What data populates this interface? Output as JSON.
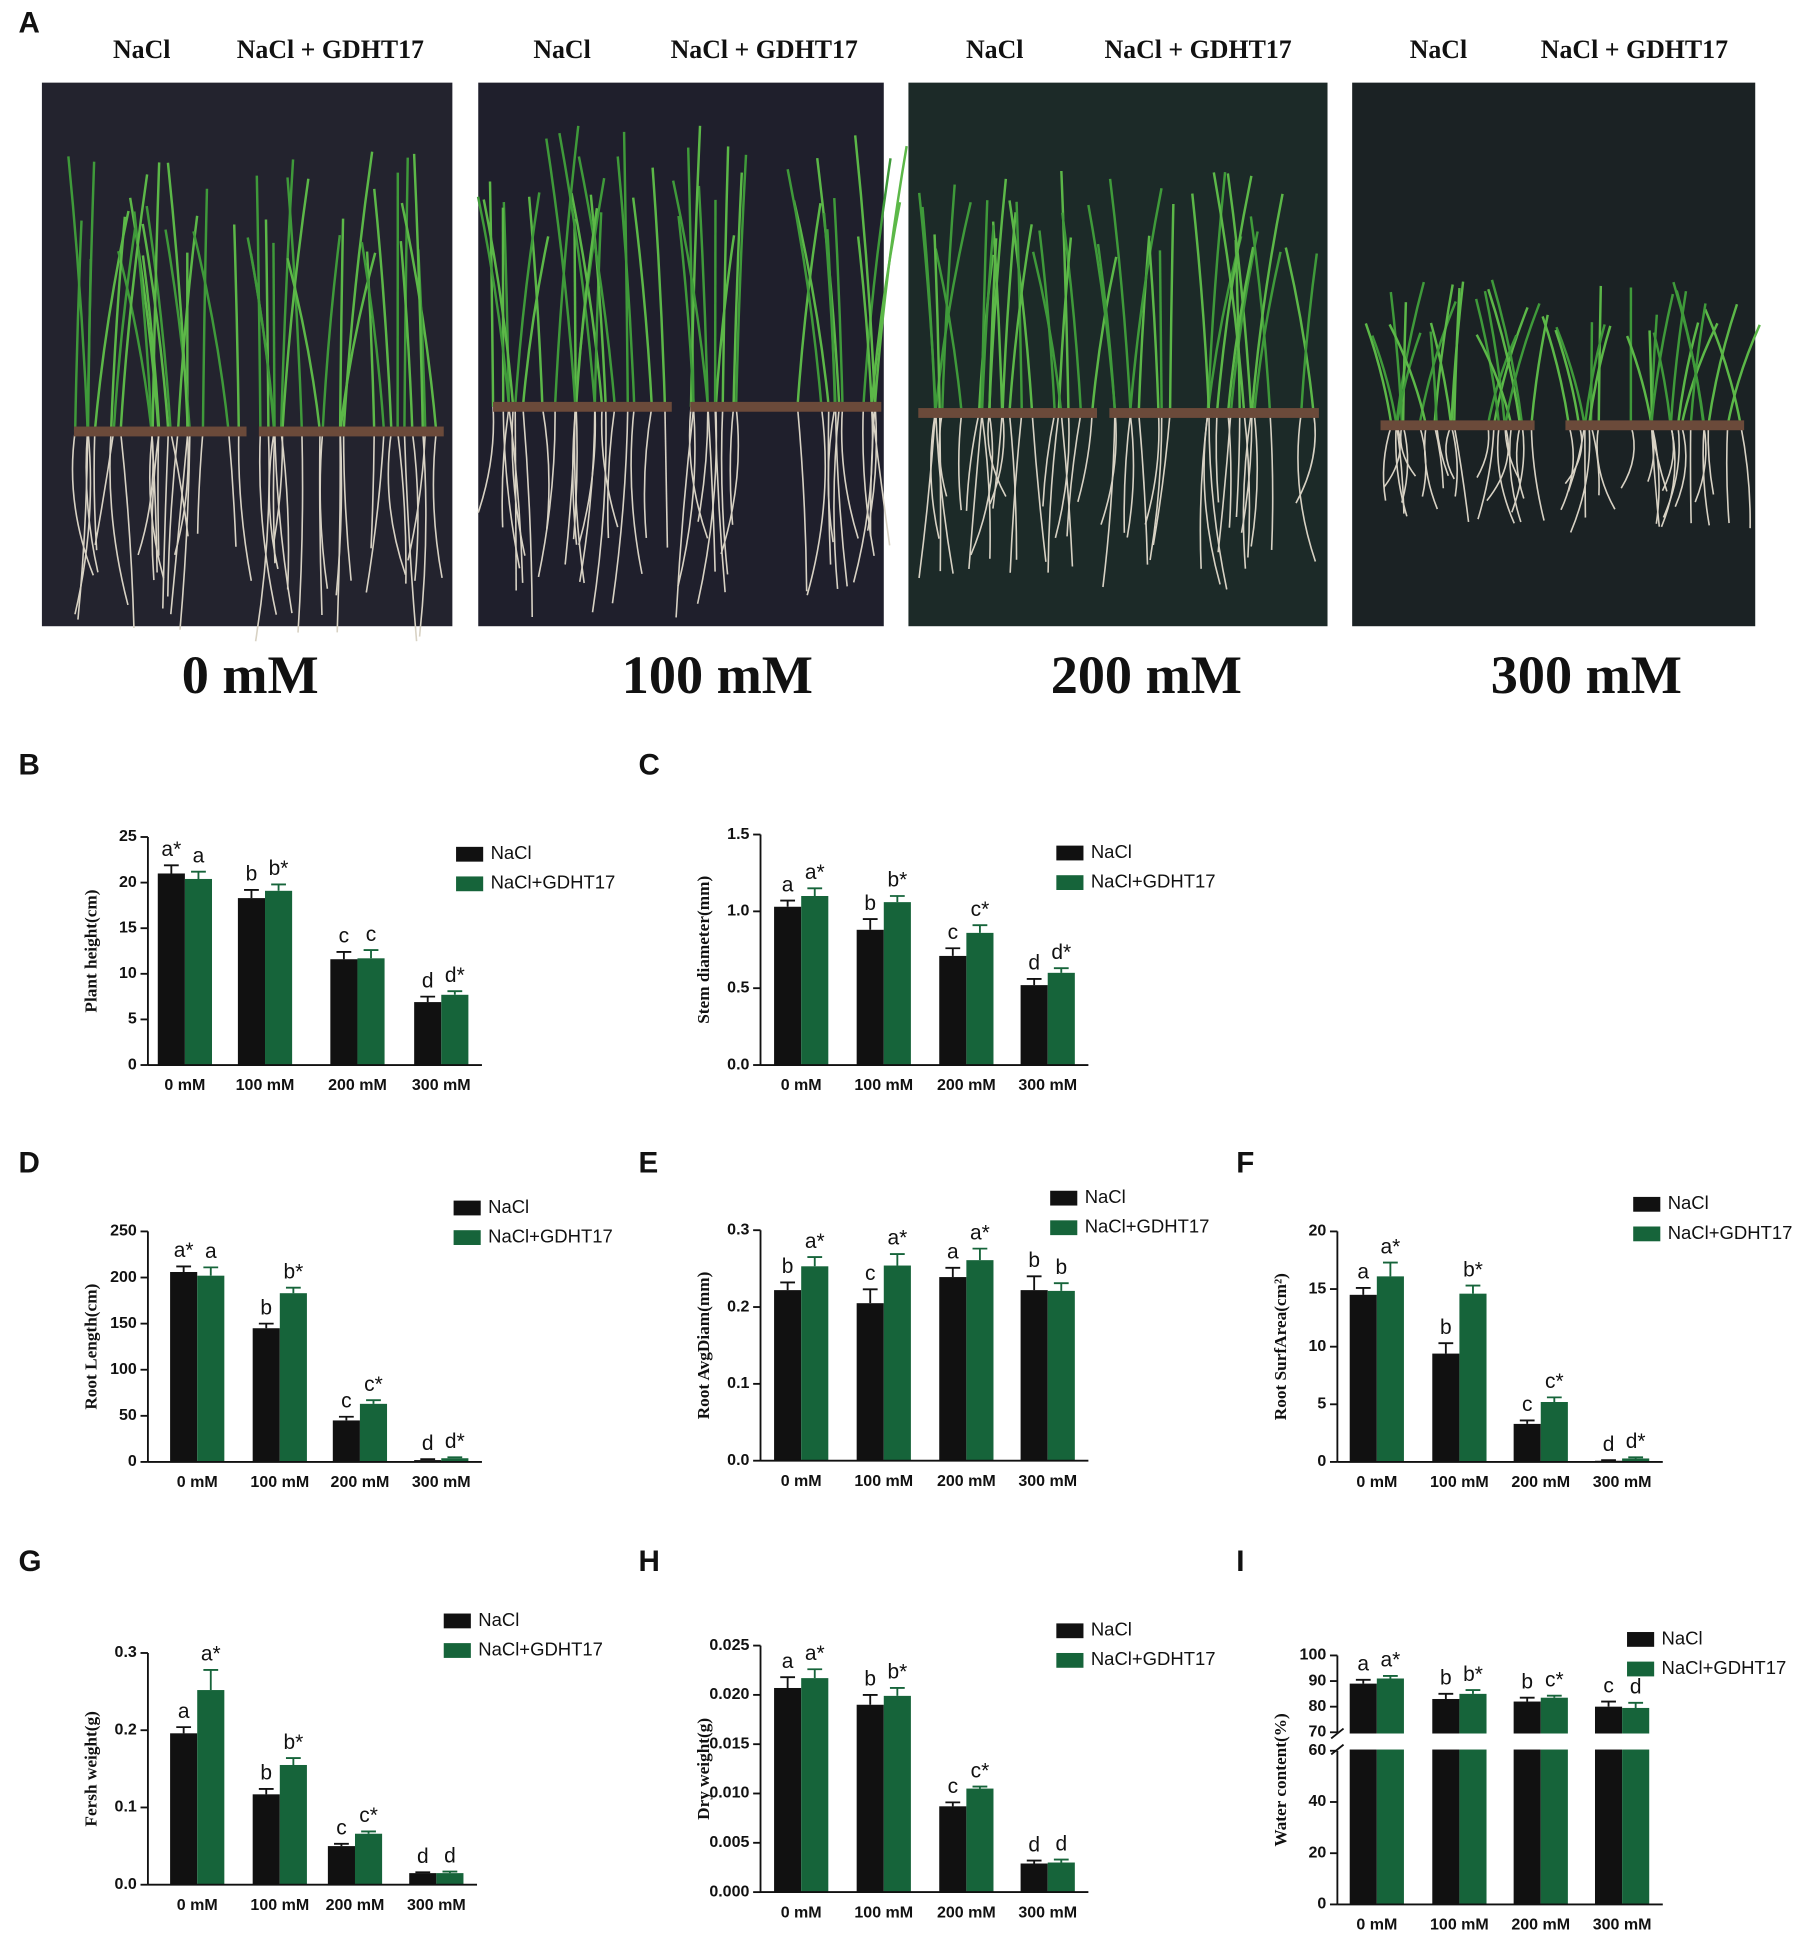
{
  "panel_a": {
    "label": "A",
    "photos": [
      {
        "labels": [
          "NaCl",
          "NaCl + GDHT17"
        ],
        "concentration": "0 mM"
      },
      {
        "labels": [
          "NaCl",
          "NaCl + GDHT17"
        ],
        "concentration": "100 mM"
      },
      {
        "labels": [
          "NaCl",
          "NaCl + GDHT17"
        ],
        "concentration": "200 mM"
      },
      {
        "labels": [
          "NaCl",
          "NaCl + GDHT17"
        ],
        "concentration": "300 mM"
      }
    ]
  },
  "chart_data": [
    {
      "type": "bar",
      "panel": "B",
      "y_label": "Plant height(cm)",
      "categories": [
        "0 mM",
        "100 mM",
        "200 mM",
        "300 mM"
      ],
      "ylim": [
        0,
        25
      ],
      "yticks": [
        0,
        5,
        10,
        15,
        20,
        25
      ],
      "series": [
        {
          "name": "NaCl",
          "color": "#111111",
          "values": [
            21,
            18.3,
            11.6,
            6.9
          ],
          "errors": [
            0.9,
            0.9,
            0.8,
            0.6
          ],
          "significance": [
            "a*",
            "b",
            "c",
            "d"
          ]
        },
        {
          "name": "NaCl+GDHT17",
          "color": "#16643a",
          "values": [
            20.4,
            19.1,
            11.7,
            7.7
          ],
          "errors": [
            0.8,
            0.7,
            0.9,
            0.4
          ],
          "significance": [
            "a",
            "b*",
            "c",
            "d*"
          ]
        }
      ]
    },
    {
      "type": "bar",
      "panel": "C",
      "y_label": "Stem diameter(mm)",
      "categories": [
        "0 mM",
        "100 mM",
        "200 mM",
        "300 mM"
      ],
      "ylim": [
        0,
        1.5
      ],
      "yticks": [
        {
          "value": 0,
          "label": "0.0"
        },
        0.5,
        {
          "value": 1,
          "label": "1.0"
        },
        1.5
      ],
      "series": [
        {
          "name": "NaCl",
          "color": "#111111",
          "values": [
            1.03,
            0.88,
            0.71,
            0.52
          ],
          "errors": [
            0.04,
            0.07,
            0.05,
            0.04
          ],
          "significance": [
            "a",
            "b",
            "c",
            "d"
          ]
        },
        {
          "name": "NaCl+GDHT17",
          "color": "#16643a",
          "values": [
            1.1,
            1.06,
            0.86,
            0.6
          ],
          "errors": [
            0.05,
            0.04,
            0.05,
            0.03
          ],
          "significance": [
            "a*",
            "b*",
            "c*",
            "d*"
          ]
        }
      ]
    },
    {
      "type": "bar",
      "panel": "D",
      "y_label": "Root Length(cm)",
      "categories": [
        "0 mM",
        "100 mM",
        "200 mM",
        "300 mM"
      ],
      "ylim": [
        0,
        250
      ],
      "yticks": [
        0,
        50,
        100,
        150,
        200,
        250
      ],
      "series": [
        {
          "name": "NaCl",
          "color": "#111111",
          "values": [
            206,
            145,
            45,
            2
          ],
          "errors": [
            6,
            5,
            4,
            1
          ],
          "significance": [
            "a*",
            "b",
            "c",
            "d"
          ]
        },
        {
          "name": "NaCl+GDHT17",
          "color": "#16643a",
          "values": [
            202,
            183,
            63,
            4
          ],
          "errors": [
            9,
            6,
            4,
            1
          ],
          "significance": [
            "a",
            "b*",
            "c*",
            "d*"
          ]
        }
      ]
    },
    {
      "type": "bar",
      "panel": "E",
      "y_label": "Root AvgDiam(mm)",
      "categories": [
        "0 mM",
        "100 mM",
        "200 mM",
        "300 mM"
      ],
      "ylim": [
        0,
        0.3
      ],
      "yticks": [
        {
          "value": 0,
          "label": "0.0"
        },
        0.1,
        0.2,
        0.3
      ],
      "series": [
        {
          "name": "NaCl",
          "color": "#111111",
          "values": [
            0.222,
            0.205,
            0.239,
            0.222
          ],
          "errors": [
            0.01,
            0.018,
            0.012,
            0.018
          ],
          "significance": [
            "b",
            "c",
            "a",
            "b"
          ]
        },
        {
          "name": "NaCl+GDHT17",
          "color": "#16643a",
          "values": [
            0.253,
            0.254,
            0.261,
            0.221
          ],
          "errors": [
            0.012,
            0.015,
            0.015,
            0.01
          ],
          "significance": [
            "a*",
            "a*",
            "a*",
            "b"
          ]
        }
      ]
    },
    {
      "type": "bar",
      "panel": "F",
      "y_label": "Root SurfArea(cm²)",
      "categories": [
        "0 mM",
        "100 mM",
        "200 mM",
        "300 mM"
      ],
      "ylim": [
        0,
        20
      ],
      "yticks": [
        0,
        5,
        10,
        15,
        20
      ],
      "series": [
        {
          "name": "NaCl",
          "color": "#111111",
          "values": [
            14.5,
            9.4,
            3.3,
            0.1
          ],
          "errors": [
            0.6,
            0.9,
            0.3,
            0.05
          ],
          "significance": [
            "a",
            "b",
            "c",
            "d"
          ]
        },
        {
          "name": "NaCl+GDHT17",
          "color": "#16643a",
          "values": [
            16.1,
            14.6,
            5.2,
            0.3
          ],
          "errors": [
            1.2,
            0.7,
            0.4,
            0.1
          ],
          "significance": [
            "a*",
            "b*",
            "c*",
            "d*"
          ]
        }
      ]
    },
    {
      "type": "bar",
      "panel": "G",
      "y_label": "Fersh weight(g)",
      "categories": [
        "0 mM",
        "100 mM",
        "200 mM",
        "300 mM"
      ],
      "ylim": [
        0,
        0.3
      ],
      "yticks": [
        {
          "value": 0,
          "label": "0.0"
        },
        0.1,
        0.2,
        0.3
      ],
      "series": [
        {
          "name": "NaCl",
          "color": "#111111",
          "values": [
            0.196,
            0.117,
            0.05,
            0.015
          ],
          "errors": [
            0.008,
            0.007,
            0.003,
            0.001
          ],
          "significance": [
            "a",
            "b",
            "c",
            "d"
          ]
        },
        {
          "name": "NaCl+GDHT17",
          "color": "#16643a",
          "values": [
            0.252,
            0.155,
            0.066,
            0.015
          ],
          "errors": [
            0.026,
            0.009,
            0.003,
            0.002
          ],
          "significance": [
            "a*",
            "b*",
            "c*",
            "d"
          ]
        }
      ]
    },
    {
      "type": "bar",
      "panel": "H",
      "y_label": "Dry weight(g)",
      "categories": [
        "0 mM",
        "100 mM",
        "200 mM",
        "300 mM"
      ],
      "ylim": [
        0,
        0.025
      ],
      "yticks": [
        {
          "value": 0,
          "label": "0.000"
        },
        0.005,
        {
          "value": 0.01,
          "label": "0.010"
        },
        0.015,
        {
          "value": 0.02,
          "label": "0.020"
        },
        0.025
      ],
      "series": [
        {
          "name": "NaCl",
          "color": "#111111",
          "values": [
            0.0207,
            0.019,
            0.0087,
            0.0029
          ],
          "errors": [
            0.0011,
            0.001,
            0.0004,
            0.0003
          ],
          "significance": [
            "a",
            "b",
            "c",
            "d"
          ]
        },
        {
          "name": "NaCl+GDHT17",
          "color": "#16643a",
          "values": [
            0.0217,
            0.0199,
            0.0105,
            0.003
          ],
          "errors": [
            0.0009,
            0.0008,
            0.0002,
            0.0003
          ],
          "significance": [
            "a*",
            "b*",
            "c*",
            "d"
          ]
        }
      ]
    },
    {
      "type": "bar",
      "panel": "I",
      "y_label": "Water content(%)",
      "categories": [
        "0 mM",
        "100 mM",
        "200 mM",
        "300 mM"
      ],
      "ylim": [
        0,
        100
      ],
      "yticks": [
        0,
        20,
        40,
        60,
        70,
        80,
        90,
        100
      ],
      "axis_break": [
        60,
        70
      ],
      "series": [
        {
          "name": "NaCl",
          "color": "#111111",
          "values": [
            89,
            83,
            82,
            80
          ],
          "errors": [
            1.5,
            2,
            1.5,
            2
          ],
          "significance": [
            "a",
            "b",
            "b",
            "c"
          ]
        },
        {
          "name": "NaCl+GDHT17",
          "color": "#16643a",
          "values": [
            91,
            85,
            83.5,
            79.5
          ],
          "errors": [
            1,
            1.5,
            0.8,
            2
          ],
          "significance": [
            "a*",
            "b*",
            "c*",
            "d"
          ]
        }
      ]
    }
  ]
}
